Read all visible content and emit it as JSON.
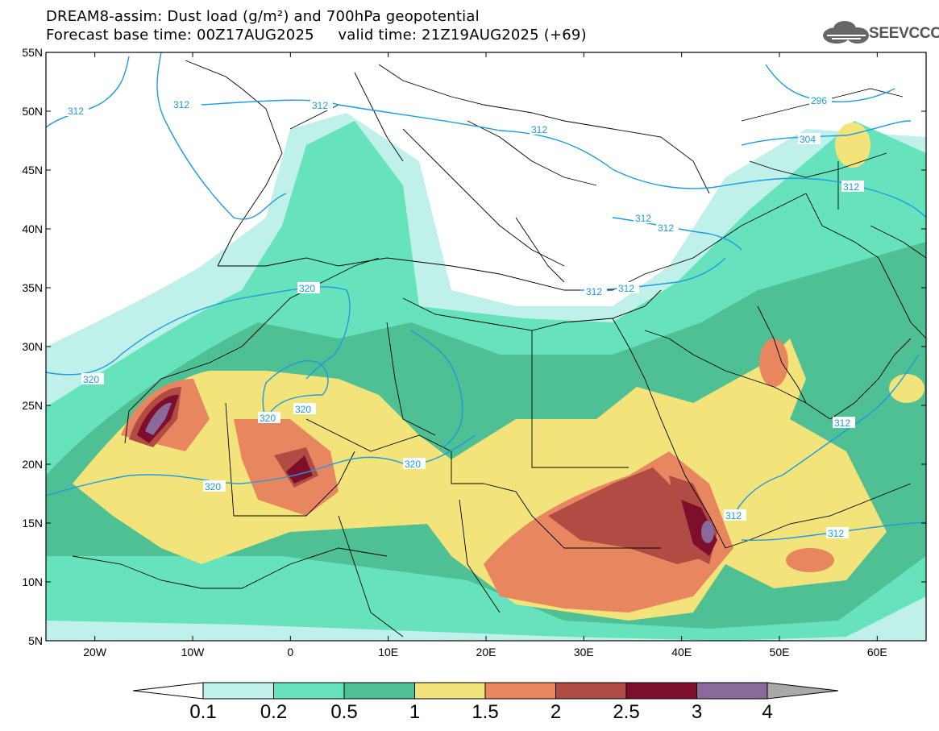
{
  "title": {
    "line1": "DREAM8-assim: Dust load (g/m²) and 700hPa geopotential",
    "line2": "Forecast base time: 00Z17AUG2025     valid time: 21Z19AUG2025 (+69)"
  },
  "logo": {
    "text": "SEEVCCC",
    "icon": "cloud-icon"
  },
  "axes": {
    "lat_labels": [
      "55N",
      "50N",
      "45N",
      "40N",
      "35N",
      "30N",
      "25N",
      "20N",
      "15N",
      "10N",
      "5N"
    ],
    "lon_labels": [
      "20W",
      "10W",
      "0",
      "10E",
      "20E",
      "30E",
      "40E",
      "50E",
      "60E"
    ],
    "lat_range": [
      5,
      55
    ],
    "lon_range": [
      -25,
      65
    ]
  },
  "isolines": {
    "labels": [
      "312",
      "312",
      "312",
      "312",
      "312",
      "304",
      "296",
      "312",
      "312",
      "312",
      "320",
      "320",
      "320",
      "320",
      "320",
      "312",
      "312",
      "312"
    ],
    "color": "#1c9ce0"
  },
  "colorbar": {
    "ticks": [
      "0.1",
      "0.2",
      "0.5",
      "1",
      "1.5",
      "2",
      "2.5",
      "3",
      "4"
    ],
    "colors": [
      "#bff0e9",
      "#66e3bd",
      "#4fbf94",
      "#f2e37a",
      "#e8875f",
      "#b04c43",
      "#7d0f2c",
      "#8a6a9a",
      "#a9a9a9"
    ]
  },
  "dust_colors": {
    "c01": "#bff0e9",
    "c02": "#66e3bd",
    "c05": "#4fbf94",
    "c1": "#f2e37a",
    "c15": "#e8875f",
    "c2": "#b04c43",
    "c25": "#7d0f2c",
    "c3": "#8a6a9a"
  }
}
